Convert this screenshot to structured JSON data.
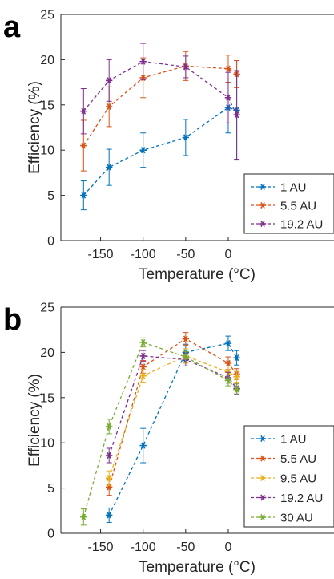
{
  "figure": {
    "panel_labels": [
      "a",
      "b"
    ]
  },
  "chart_data": [
    {
      "panel": "a",
      "type": "line",
      "xlabel": "Temperature (°C)",
      "ylabel": "Efficiency (%)",
      "xlim": [
        -185,
        10
      ],
      "ylim": [
        0,
        25
      ],
      "xticks": [
        -150,
        -100,
        -50,
        0
      ],
      "xtick_labels": [
        "-150",
        "-100",
        "-50",
        "0"
      ],
      "yticks": [
        0,
        5,
        10,
        15,
        20,
        25
      ],
      "ytick_labels": [
        "0",
        "5",
        "10",
        "15",
        "20",
        "25"
      ],
      "legend": {
        "position": "bottom-right"
      },
      "grid": false,
      "series": [
        {
          "name": "1 AU",
          "color": "#0072BD",
          "x": [
            -170,
            -140,
            -100,
            -50,
            0,
            10
          ],
          "y": [
            5.0,
            8.1,
            10.0,
            11.4,
            14.7,
            14.4
          ],
          "err": [
            1.6,
            2.0,
            1.9,
            2.0,
            2.8,
            5.5
          ]
        },
        {
          "name": "5.5 AU",
          "color": "#D95319",
          "x": [
            -170,
            -140,
            -100,
            -50,
            0,
            10
          ],
          "y": [
            10.5,
            14.8,
            18.0,
            19.3,
            19.0,
            18.4
          ],
          "err": [
            2.8,
            2.2,
            2.2,
            1.6,
            1.5,
            1.5
          ]
        },
        {
          "name": "19.2 AU",
          "color": "#7E2F8E",
          "x": [
            -170,
            -140,
            -100,
            -50,
            0,
            10
          ],
          "y": [
            14.3,
            17.7,
            19.8,
            19.2,
            15.8,
            13.9
          ],
          "err": [
            2.5,
            2.3,
            2.0,
            1.2,
            2.8,
            4.9
          ]
        }
      ]
    },
    {
      "panel": "b",
      "type": "line",
      "xlabel": "Temperature (°C)",
      "ylabel": "Efficiency (%)",
      "xlim": [
        -185,
        10
      ],
      "ylim": [
        0,
        25
      ],
      "xticks": [
        -150,
        -100,
        -50,
        0
      ],
      "xtick_labels": [
        "-150",
        "-100",
        "-50",
        "0"
      ],
      "yticks": [
        0,
        5,
        10,
        15,
        20,
        25
      ],
      "ytick_labels": [
        "0",
        "5",
        "10",
        "15",
        "20",
        "25"
      ],
      "legend": {
        "position": "bottom-right"
      },
      "grid": false,
      "series": [
        {
          "name": "1 AU",
          "color": "#0072BD",
          "x": [
            -140,
            -100,
            -50,
            0,
            10
          ],
          "y": [
            2.0,
            9.7,
            20.0,
            21.0,
            19.4
          ],
          "err": [
            0.8,
            1.9,
            0.9,
            0.8,
            0.8
          ]
        },
        {
          "name": "5.5 AU",
          "color": "#D95319",
          "x": [
            -140,
            -100,
            -50,
            0,
            10
          ],
          "y": [
            5.1,
            18.4,
            21.5,
            18.8,
            17.6
          ],
          "err": [
            0.9,
            0.7,
            0.7,
            0.7,
            0.6
          ]
        },
        {
          "name": "9.5 AU",
          "color": "#EDB120",
          "x": [
            -140,
            -100,
            -50,
            0,
            10
          ],
          "y": [
            6.1,
            17.4,
            19.6,
            17.8,
            17.3
          ],
          "err": [
            0.8,
            0.7,
            0.8,
            0.7,
            0.6
          ]
        },
        {
          "name": "19.2 AU",
          "color": "#7E2F8E",
          "x": [
            -140,
            -100,
            -50,
            0,
            10
          ],
          "y": [
            8.6,
            19.6,
            19.2,
            17.2,
            16.0
          ],
          "err": [
            0.8,
            0.6,
            0.7,
            0.6,
            0.6
          ]
        },
        {
          "name": "30 AU",
          "color": "#77AC30",
          "x": [
            -170,
            -140,
            -100,
            -50,
            0,
            10
          ],
          "y": [
            1.8,
            11.8,
            21.1,
            19.5,
            16.9,
            15.9
          ],
          "err": [
            0.9,
            0.8,
            0.5,
            0.6,
            0.6,
            0.6
          ]
        }
      ]
    }
  ]
}
